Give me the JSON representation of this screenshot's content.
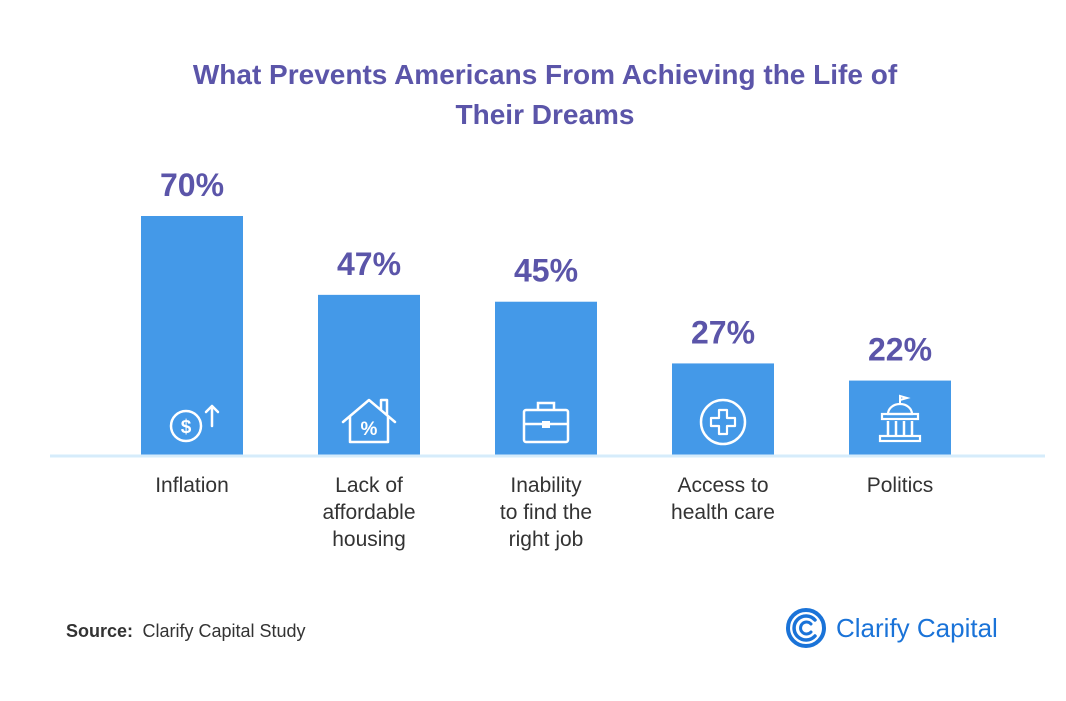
{
  "chart_data": {
    "type": "bar",
    "title_lines": [
      "What Prevents Americans From Achieving the Life of",
      "Their Dreams"
    ],
    "categories": [
      [
        "Inflation"
      ],
      [
        "Lack of",
        "affordable",
        "housing"
      ],
      [
        "Inability",
        "to find the",
        "right job"
      ],
      [
        "Access to",
        "health care"
      ],
      [
        "Politics"
      ]
    ],
    "values": [
      70,
      47,
      45,
      27,
      22
    ],
    "value_labels": [
      "70%",
      "47%",
      "45%",
      "27%",
      "22%"
    ],
    "icons": [
      "dollar-up-icon",
      "house-percent-icon",
      "briefcase-icon",
      "medical-cross-icon",
      "government-building-icon"
    ],
    "ylim": [
      0,
      70
    ],
    "bar_color": "#4499e8",
    "label_color": "#5b55a9",
    "baseline_color": "#d6ecfb"
  },
  "source": {
    "label": "Source:",
    "text": "Clarify Capital Study"
  },
  "brand": {
    "name": "Clarify Capital",
    "icon": "clarify-logo-icon",
    "color": "#1a73d8"
  }
}
